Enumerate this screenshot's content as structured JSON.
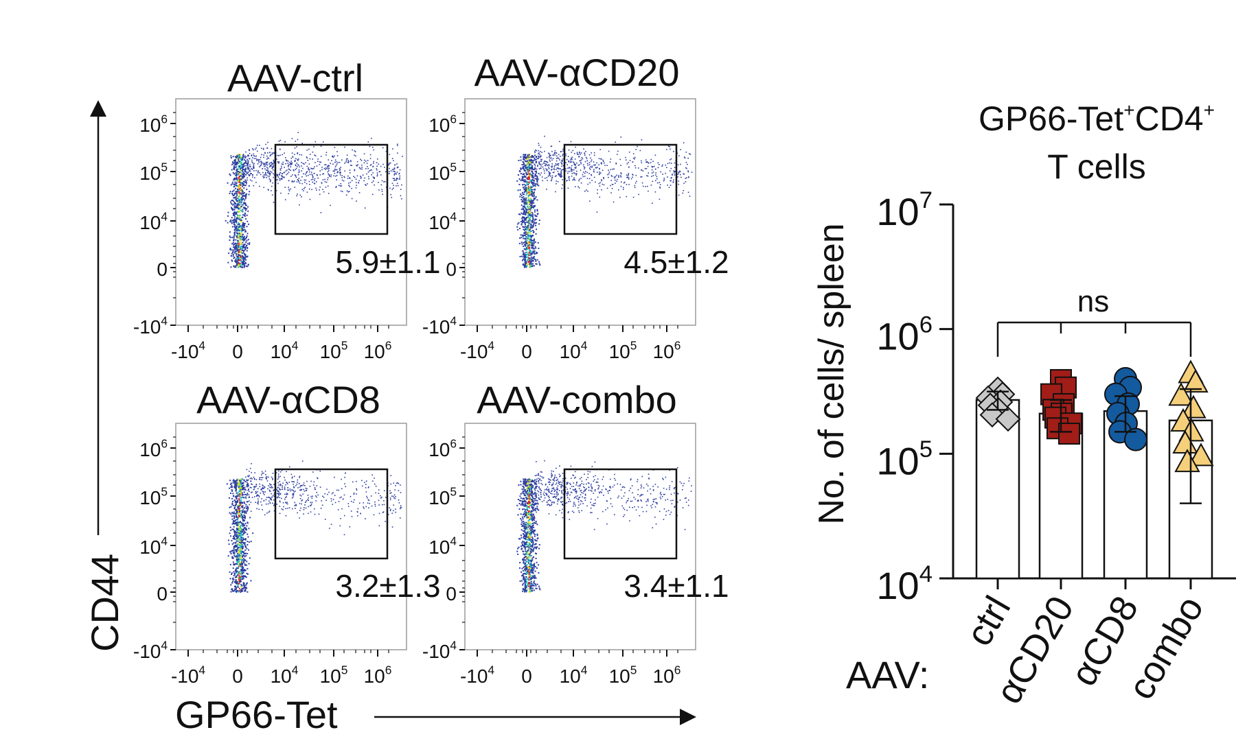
{
  "colors": {
    "axis": "#111111",
    "density_low": "#2b3c9e",
    "density_mid": "#19c3c7",
    "density_high": "#e6e300",
    "density_peak": "#e02020"
  },
  "flow": {
    "y_axis_label": "CD44",
    "x_axis_label": "GP66-Tet",
    "y_ticks": [
      {
        "base": "10",
        "exp": "6"
      },
      {
        "base": "10",
        "exp": "5"
      },
      {
        "base": "10",
        "exp": "4"
      },
      {
        "base": "0",
        "exp": ""
      },
      {
        "base": "-10",
        "exp": "4"
      }
    ],
    "x_ticks": [
      {
        "base": "-10",
        "exp": "4"
      },
      {
        "base": "0",
        "exp": ""
      },
      {
        "base": "10",
        "exp": "4"
      },
      {
        "base": "10",
        "exp": "5"
      },
      {
        "base": "10",
        "exp": "6"
      }
    ],
    "panels": [
      {
        "title": "AAV-ctrl",
        "gate_value": "5.9±1.1"
      },
      {
        "title": "AAV-αCD20",
        "gate_value": "4.5±1.2"
      },
      {
        "title": "AAV-αCD8",
        "gate_value": "3.2±1.3"
      },
      {
        "title": "AAV-combo",
        "gate_value": "3.4±1.1"
      }
    ]
  },
  "chart_data": {
    "type": "bar",
    "title_line1_main": "GP66-Tet",
    "title_line1_sup1": "+",
    "title_line1_mid": "CD4",
    "title_line1_sup2": "+",
    "title_line2": "T cells",
    "ylabel": "No. of cells/ spleen",
    "xlabel_prefix": "AAV:",
    "yscale": "log",
    "ylim": [
      10000,
      10000000
    ],
    "yticks": [
      {
        "base": "10",
        "exp": "7",
        "value": 10000000
      },
      {
        "base": "10",
        "exp": "6",
        "value": 1000000
      },
      {
        "base": "10",
        "exp": "5",
        "value": 100000
      },
      {
        "base": "10",
        "exp": "4",
        "value": 10000
      }
    ],
    "categories": [
      "ctrl",
      "αCD20",
      "αCD8",
      "combo"
    ],
    "values": [
      270000,
      210000,
      220000,
      185000
    ],
    "errors": [
      45000,
      60000,
      70000,
      145000
    ],
    "significance": "ns",
    "series_styles": [
      {
        "marker": "diamond",
        "color": "#c8c8c8"
      },
      {
        "marker": "square",
        "color": "#a11d17"
      },
      {
        "marker": "circle",
        "color": "#145a9e"
      },
      {
        "marker": "triangle",
        "color": "#f5cf7a"
      }
    ],
    "points": [
      [
        330000,
        300000,
        280000,
        260000,
        245000,
        225000,
        205000,
        190000
      ],
      [
        390000,
        340000,
        300000,
        250000,
        225000,
        210000,
        195000,
        175000,
        160000,
        145000
      ],
      [
        400000,
        340000,
        300000,
        250000,
        210000,
        175000,
        150000,
        130000
      ],
      [
        440000,
        370000,
        290000,
        230000,
        180000,
        150000,
        120000,
        95000,
        85000
      ]
    ]
  }
}
